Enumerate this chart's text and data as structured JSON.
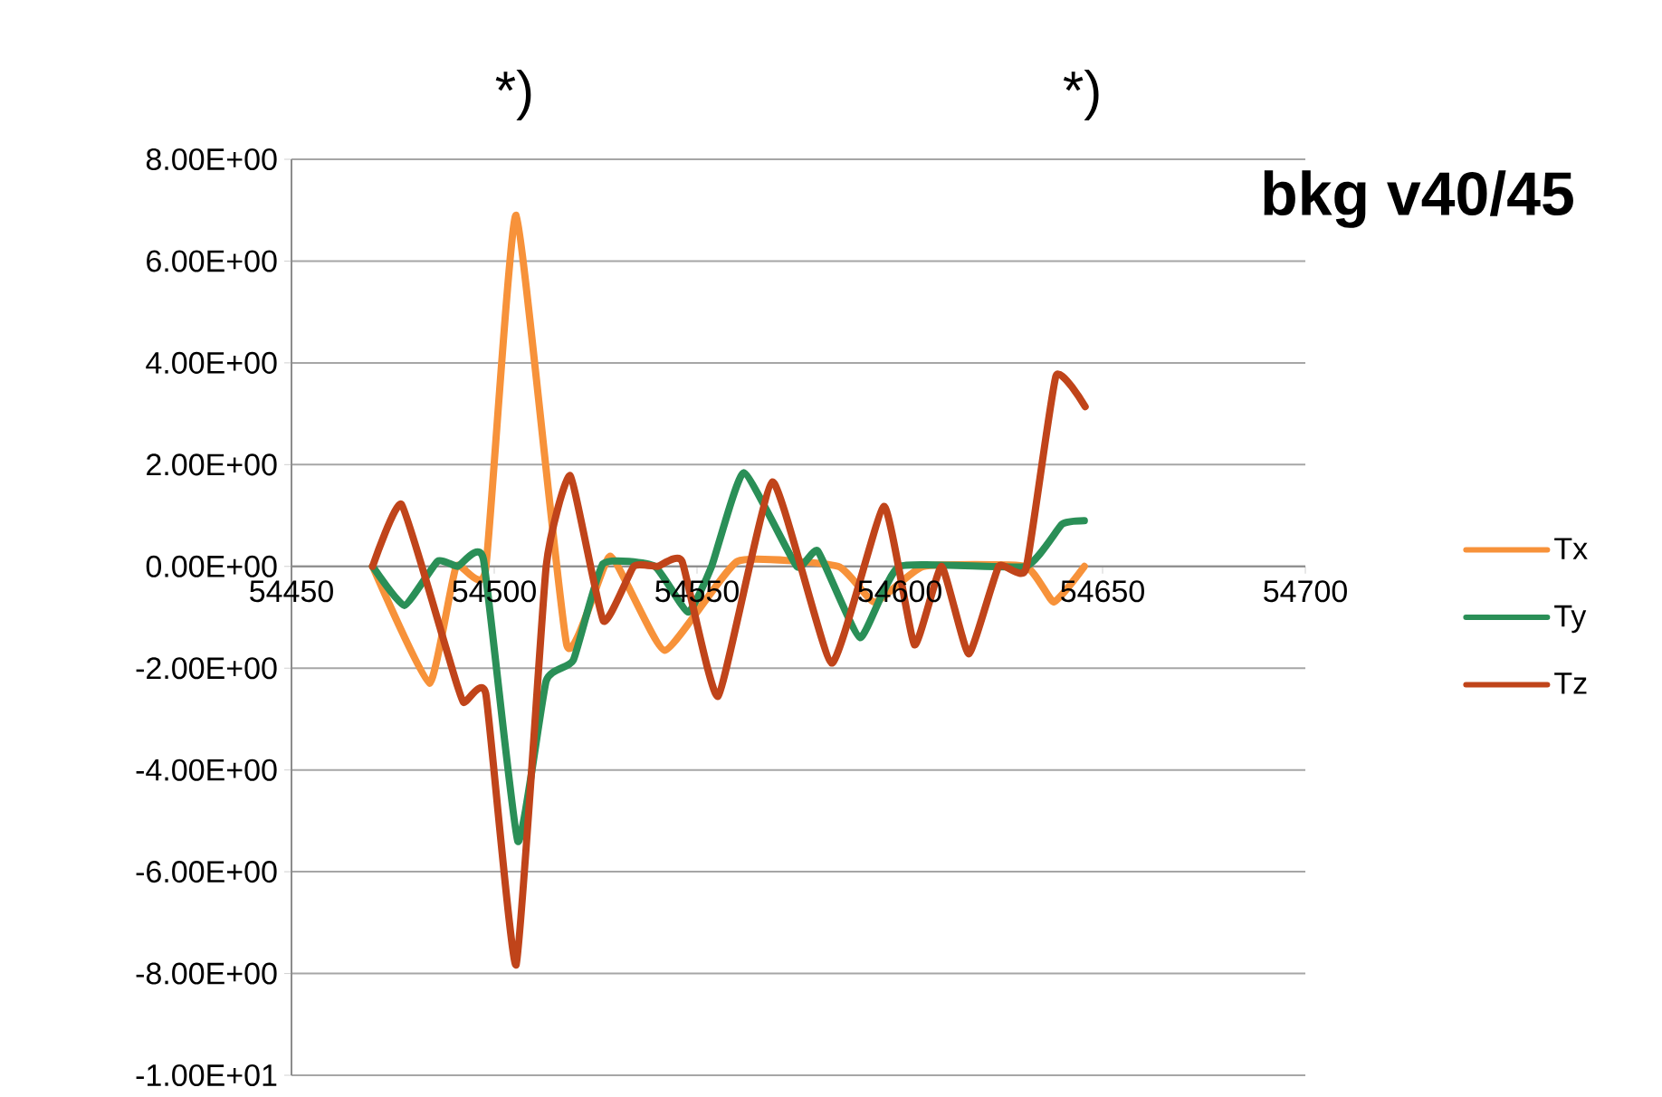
{
  "chart_data": {
    "type": "line",
    "title": "bkg v40/45",
    "annotations": [
      "*)",
      "*)"
    ],
    "xlim": [
      54450,
      54700
    ],
    "xticks": [
      54450,
      54500,
      54550,
      54600,
      54650,
      54700
    ],
    "ylim": [
      -10,
      8
    ],
    "yticks": [
      {
        "value": -10,
        "label": "-1.00E+01"
      },
      {
        "value": -8,
        "label": "-8.00E+00"
      },
      {
        "value": -6,
        "label": "-6.00E+00"
      },
      {
        "value": -4,
        "label": "-4.00E+00"
      },
      {
        "value": -2,
        "label": "-2.00E+00"
      },
      {
        "value": 0,
        "label": "0.00E+00"
      },
      {
        "value": 2,
        "label": "2.00E+00"
      },
      {
        "value": 4,
        "label": "4.00E+00"
      },
      {
        "value": 6,
        "label": "6.00E+00"
      },
      {
        "value": 8,
        "label": "8.00E+00"
      }
    ],
    "grid": "y",
    "legend": "right",
    "marker": "none",
    "line_style": "solid",
    "series": [
      {
        "name": "Tx",
        "color": "#f7923a",
        "x": [
          54470,
          54484,
          54490.6,
          54497.8,
          54505.4,
          54517.9,
          54528.6,
          54542,
          54560,
          54584.8,
          54593.8,
          54605.8,
          54631,
          54638,
          54645.5
        ],
        "values": [
          0,
          -2.3,
          0,
          -0.1,
          6.9,
          -1.55,
          0.2,
          -1.65,
          0.1,
          0,
          -0.7,
          0,
          0,
          -0.7,
          0
        ]
      },
      {
        "name": "Ty",
        "color": "#2a8f57",
        "x": [
          54470,
          54477.8,
          54486,
          54491,
          54497.3,
          54505.8,
          54512.8,
          54519.5,
          54526.8,
          54539.6,
          54547.8,
          54553.6,
          54561.5,
          54574.6,
          54579.8,
          54590.2,
          54599.9,
          54631,
          54640,
          54645.5
        ],
        "values": [
          0,
          -0.77,
          0.1,
          0,
          0.15,
          -5.4,
          -2.25,
          -1.84,
          0.05,
          0,
          -0.9,
          0,
          1.84,
          0,
          0.3,
          -1.4,
          0,
          0,
          0.83,
          0.9
        ]
      },
      {
        "name": "Tz",
        "color": "#c0441a",
        "x": [
          54470,
          54477.1,
          54488.3,
          54492.4,
          54497.9,
          54505.4,
          54512.8,
          54518.75,
          54526.9,
          54534.4,
          54540.3,
          54546.3,
          54555.2,
          54568.6,
          54583.2,
          54596.1,
          54603.6,
          54610.3,
          54617,
          54624.4,
          54631.1,
          54638.5,
          54645.7
        ],
        "values": [
          0,
          1.22,
          -1.66,
          -2.67,
          -2.5,
          -7.83,
          0,
          1.78,
          -1.07,
          0,
          0,
          0.1,
          -2.55,
          1.66,
          -1.9,
          1.18,
          -1.54,
          0,
          -1.72,
          0,
          -0.05,
          3.74,
          3.14
        ]
      }
    ]
  }
}
